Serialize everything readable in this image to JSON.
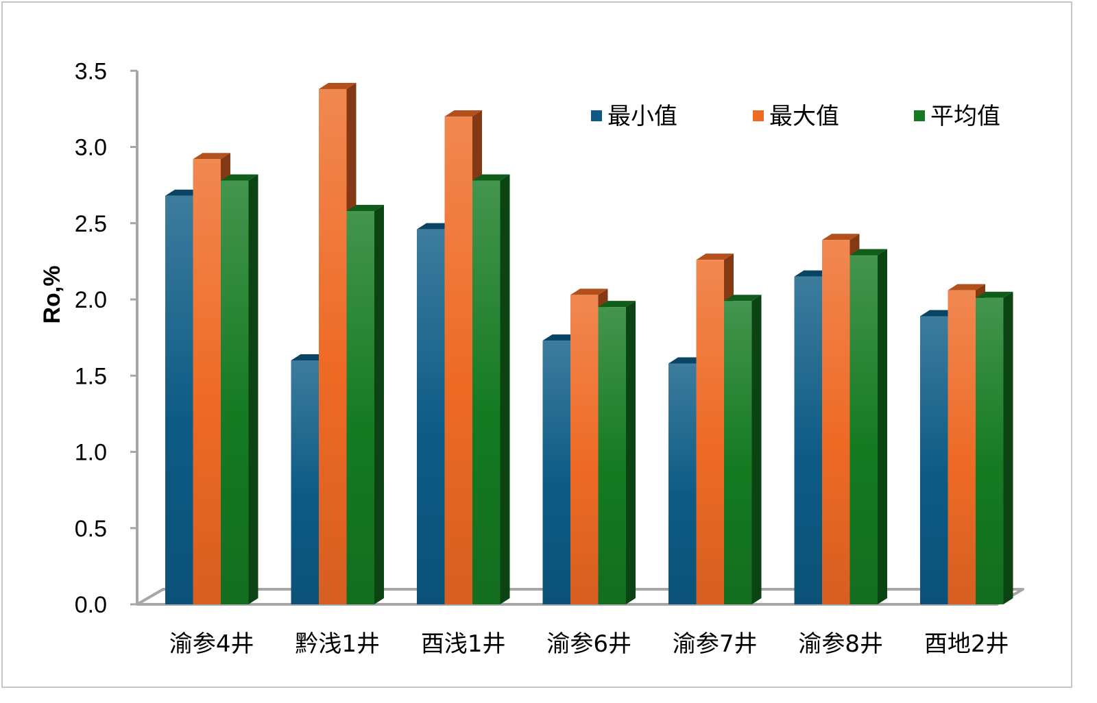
{
  "chart_data": {
    "type": "bar",
    "title": "",
    "xlabel": "",
    "ylabel": "Ro,%",
    "ylim": [
      0,
      3.5
    ],
    "yticks": [
      "0.0",
      "0.5",
      "1.0",
      "1.5",
      "2.0",
      "2.5",
      "3.0",
      "3.5"
    ],
    "categories": [
      "渝参4井",
      "黔浅1井",
      "酉浅1井",
      "渝参6井",
      "渝参7井",
      "渝参8井",
      "酉地2井"
    ],
    "series": [
      {
        "name": "最小值",
        "color": "#0d5b85",
        "values": [
          2.68,
          1.6,
          2.46,
          1.73,
          1.58,
          2.15,
          1.89
        ]
      },
      {
        "name": "最大值",
        "color": "#ee6a25",
        "values": [
          2.92,
          3.38,
          3.2,
          2.03,
          2.26,
          2.39,
          2.06
        ]
      },
      {
        "name": "平均值",
        "color": "#157a22",
        "values": [
          2.78,
          2.58,
          2.78,
          1.95,
          1.99,
          2.29,
          2.01
        ]
      }
    ],
    "legend_position": "top-right",
    "grid": false
  }
}
